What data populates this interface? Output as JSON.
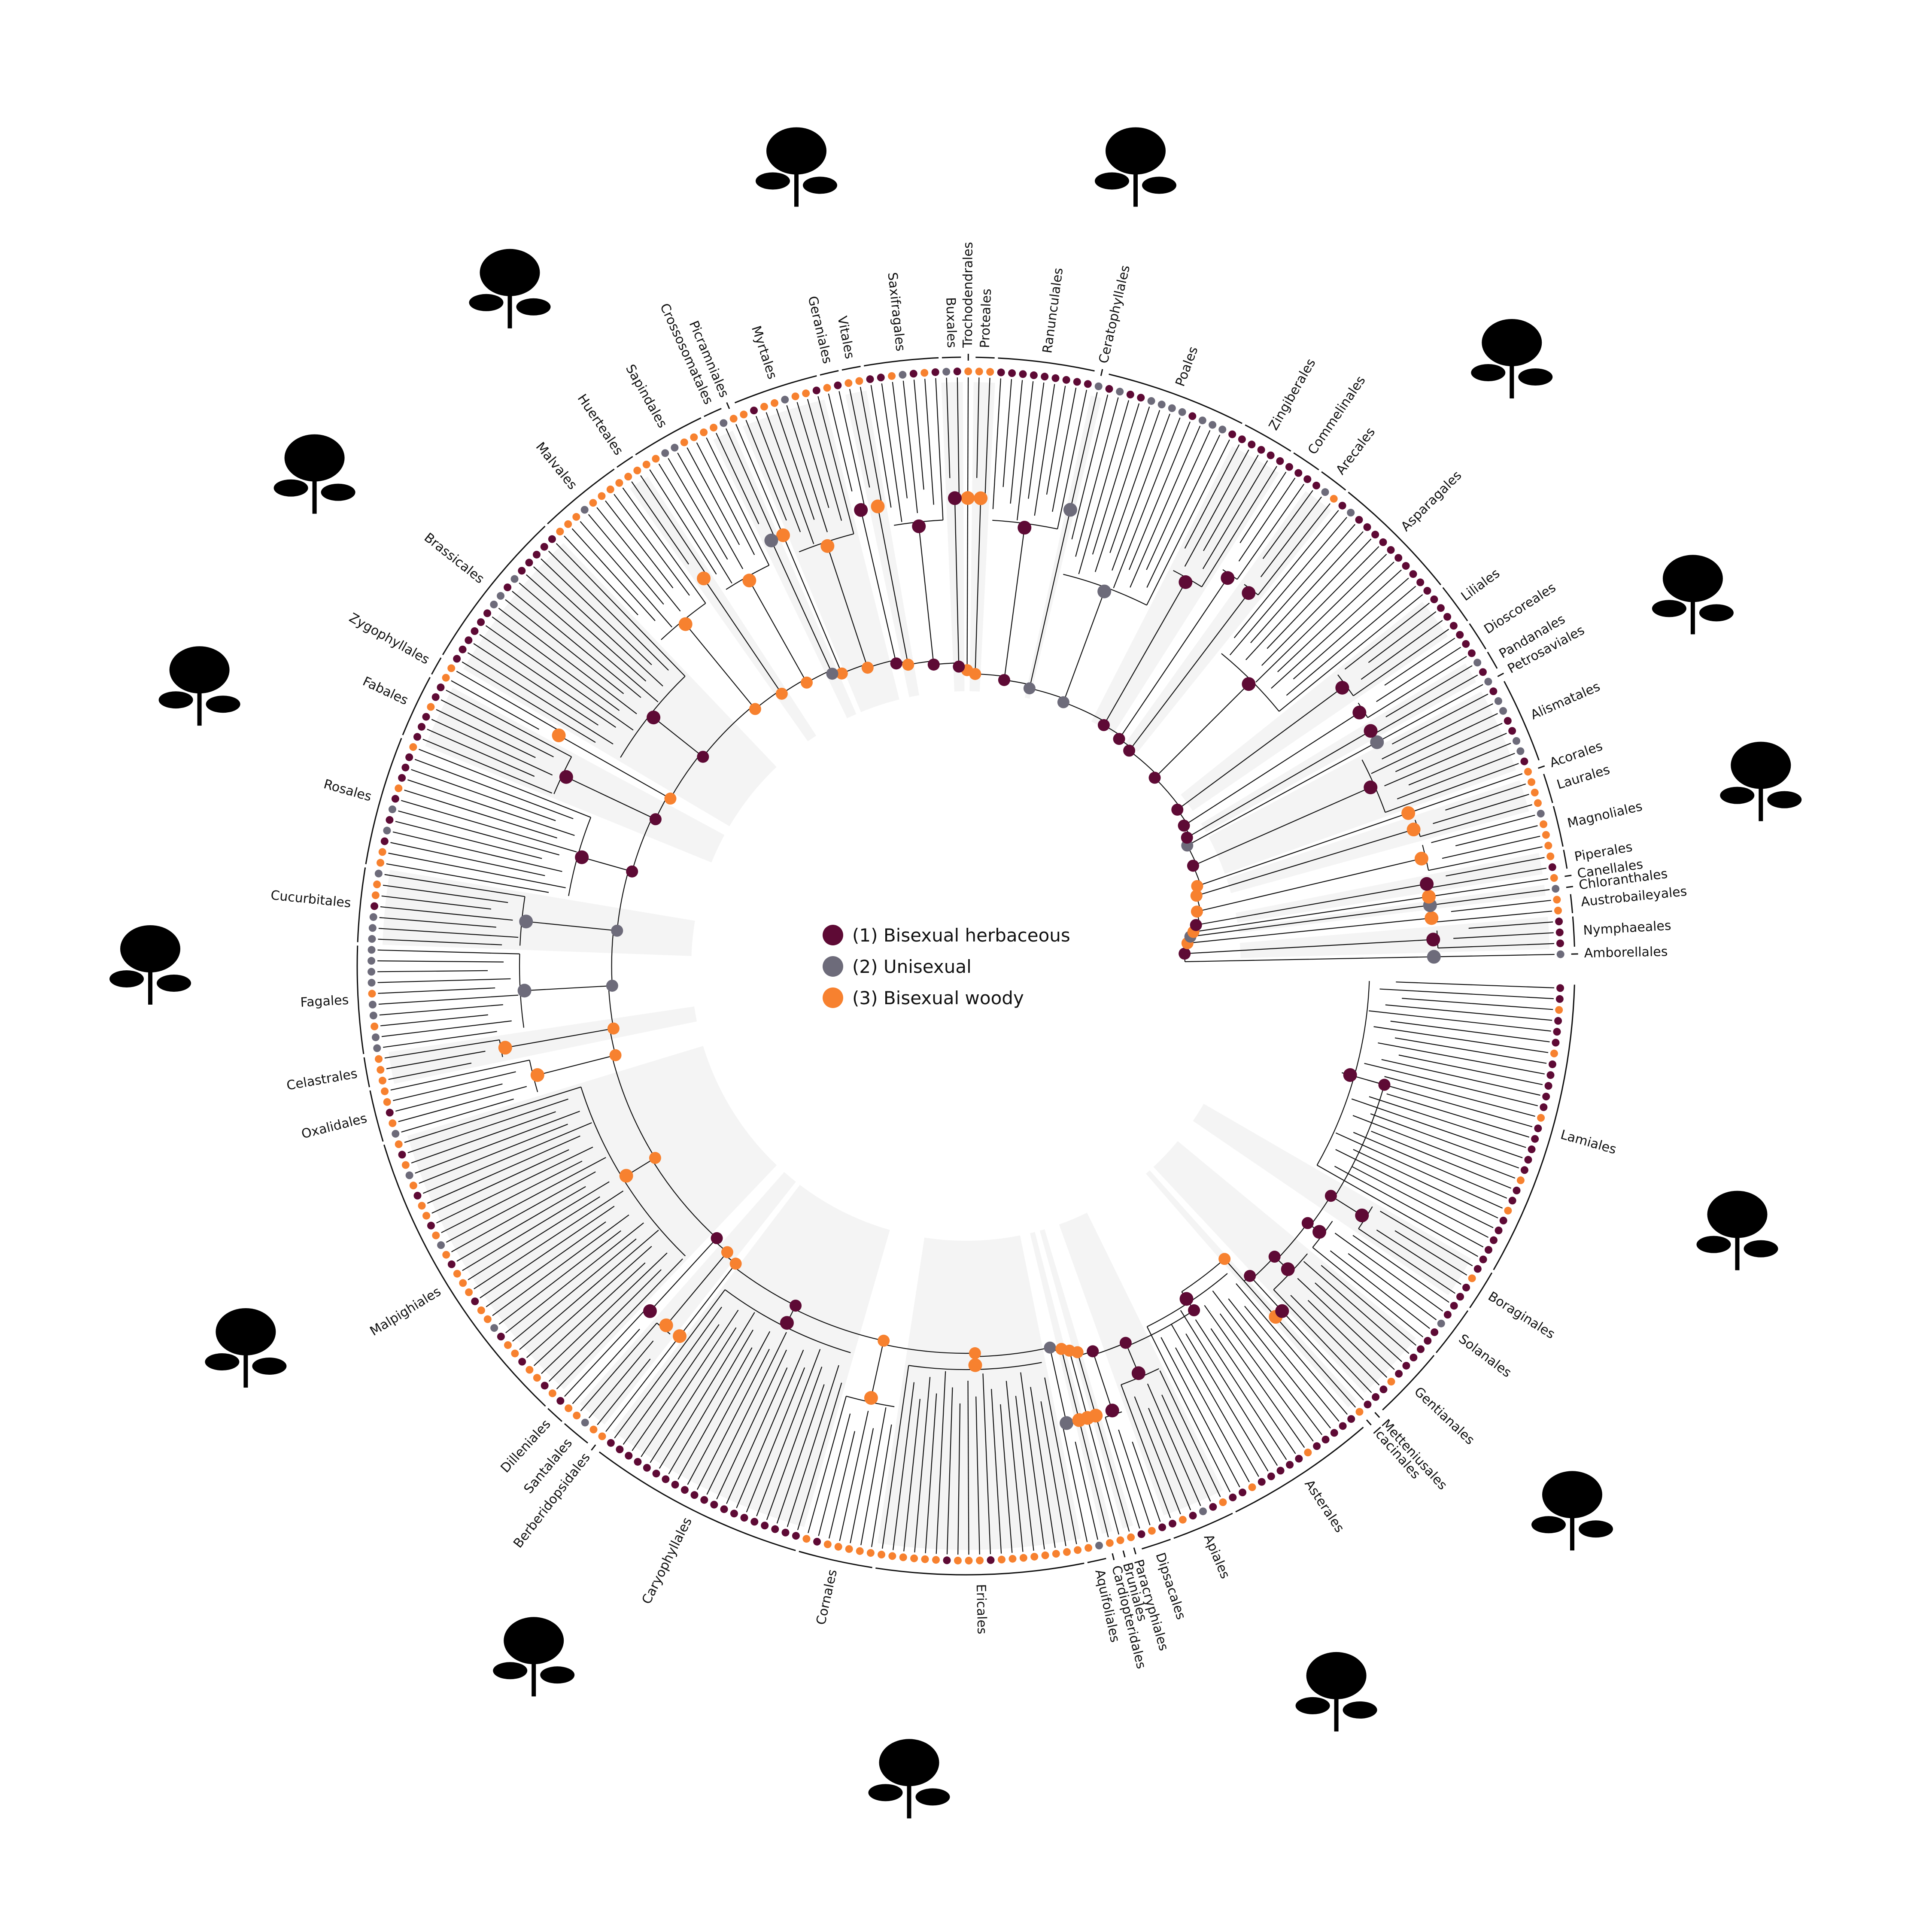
{
  "colors": {
    "state1": "#5e0a35",
    "state2": "#6d6b7a",
    "state3": "#f7812f",
    "branch": "#111111",
    "bracket": "#111111",
    "band": "#ebebeb",
    "silhouette": "#000000"
  },
  "legend": {
    "items": [
      {
        "label": "(1) Bisexual herbaceous",
        "color": "#5e0a35"
      },
      {
        "label": "(2) Unisexual",
        "color": "#6d6b7a"
      },
      {
        "label": "(3) Bisexual woody",
        "color": "#f7812f"
      }
    ]
  },
  "orders": [
    {
      "name": "Amborellales",
      "angle": 0.6,
      "tips": [
        2
      ]
    },
    {
      "name": "Nymphaeales",
      "angle": 3.2,
      "tips": [
        1,
        1,
        1
      ]
    },
    {
      "name": "Austrobaileyales",
      "angle": 6.2,
      "tips": [
        3,
        3
      ]
    },
    {
      "name": "Chloranthales",
      "angle": 7.6,
      "tips": [
        2
      ]
    },
    {
      "name": "Canellales",
      "angle": 8.8,
      "tips": [
        3
      ]
    },
    {
      "name": "Piperales",
      "angle": 10.3,
      "tips": [
        1,
        3
      ]
    },
    {
      "name": "Magnoliales",
      "angle": 14.6,
      "tips": [
        3,
        3,
        3,
        2
      ]
    },
    {
      "name": "Laurales",
      "angle": 19.1,
      "tips": [
        3,
        3,
        3
      ]
    },
    {
      "name": "Acorales",
      "angle": 21.4,
      "tips": [
        3
      ]
    },
    {
      "name": "Alismatales",
      "angle": 26.0,
      "tips": [
        1,
        2,
        2,
        1,
        1,
        2,
        2,
        1
      ]
    },
    {
      "name": "Petrosaviales",
      "angle": 32.2,
      "tips": [
        2
      ]
    },
    {
      "name": "Pandanales",
      "angle": 33.8,
      "tips": [
        1,
        2
      ]
    },
    {
      "name": "Dioscoreales",
      "angle": 36.0,
      "tips": [
        1,
        1,
        1
      ]
    },
    {
      "name": "Liliales",
      "angle": 39.4,
      "tips": [
        1,
        1,
        1,
        1
      ]
    },
    {
      "name": "Asparagales",
      "angle": 48.0,
      "tips": [
        1,
        1,
        1,
        1,
        1,
        1,
        1,
        1,
        1,
        1,
        2,
        1
      ]
    },
    {
      "name": "Arecales",
      "angle": 55.6,
      "tips": [
        3,
        2,
        1
      ]
    },
    {
      "name": "Commelinales",
      "angle": 58.4,
      "tips": [
        1,
        1,
        1
      ]
    },
    {
      "name": "Zingiberales",
      "angle": 62.6,
      "tips": [
        1,
        1,
        1,
        1,
        1
      ]
    },
    {
      "name": "Poales",
      "angle": 71.5,
      "tips": [
        1,
        2,
        2,
        2,
        1,
        2,
        2,
        2,
        2,
        1,
        1,
        2,
        1
      ]
    },
    {
      "name": "Ceratophyllales",
      "angle": 78.0,
      "tips": [
        2
      ]
    },
    {
      "name": "Ranunculales",
      "angle": 83.0,
      "tips": [
        1,
        1,
        1,
        1,
        1,
        1,
        1,
        1,
        1
      ]
    },
    {
      "name": "Proteales",
      "angle": 88.6,
      "tips": [
        3,
        3
      ]
    },
    {
      "name": "Trochodendrales",
      "angle": 91.3,
      "tips": [
        3
      ]
    },
    {
      "name": "Buxales",
      "angle": 92.6,
      "tips": [
        1,
        2
      ]
    },
    {
      "name": "Saxifragales",
      "angle": 97.4,
      "tips": [
        1,
        3,
        1,
        2,
        3,
        1,
        1
      ]
    },
    {
      "name": "Vitales",
      "angle": 102.0,
      "tips": [
        3,
        3
      ]
    },
    {
      "name": "Geraniales",
      "angle": 104.0,
      "tips": [
        1,
        3
      ]
    },
    {
      "name": "Myrtales",
      "angle": 109.0,
      "tips": [
        1,
        3,
        3,
        2,
        3,
        3,
        1,
        3
      ]
    },
    {
      "name": "Picramniales",
      "angle": 114.3,
      "tips": [
        3
      ]
    },
    {
      "name": "Crossosomatales",
      "angle": 115.8,
      "tips": [
        2,
        3
      ]
    },
    {
      "name": "Sapindales",
      "angle": 120.8,
      "tips": [
        3,
        3,
        3,
        2,
        2,
        3,
        3
      ]
    },
    {
      "name": "Huerteales",
      "angle": 125.8,
      "tips": [
        3,
        3
      ]
    },
    {
      "name": "Malvales",
      "angle": 131.0,
      "tips": [
        3,
        3,
        3,
        3,
        2,
        3,
        3,
        3
      ]
    },
    {
      "name": "Brassicales",
      "angle": 141.5,
      "tips": [
        1,
        1,
        1,
        1,
        1,
        2,
        1,
        2,
        2,
        1,
        1,
        1,
        1,
        1,
        1
      ]
    },
    {
      "name": "Zygophyllales",
      "angle": 150.0,
      "tips": [
        3,
        3
      ]
    },
    {
      "name": "Fabales",
      "angle": 153.5,
      "tips": [
        1,
        1,
        3,
        1,
        1,
        1
      ]
    },
    {
      "name": "Rosales",
      "angle": 162.0,
      "tips": [
        3,
        1,
        1,
        1,
        3,
        1,
        2,
        1,
        2,
        1,
        3,
        3
      ]
    },
    {
      "name": "Cucurbitales",
      "angle": 170.5,
      "tips": [
        2,
        3,
        3,
        1,
        2,
        2,
        2
      ]
    },
    {
      "name": "Fagales",
      "angle": 178.0,
      "tips": [
        2,
        2,
        2,
        2,
        3,
        2,
        2,
        3,
        2,
        2
      ]
    },
    {
      "name": "Celastrales",
      "angle": 184.5,
      "tips": [
        3,
        3,
        3
      ]
    },
    {
      "name": "Oxalidales",
      "angle": 187.8,
      "tips": [
        3,
        3,
        1,
        3,
        2
      ]
    },
    {
      "name": "Malpighiales",
      "angle": 203.0,
      "tips": [
        3,
        1,
        3,
        2,
        3,
        1,
        3,
        3,
        1,
        3,
        2,
        3,
        1,
        3,
        3,
        3,
        1,
        3,
        3,
        2,
        1,
        3,
        3,
        1,
        3,
        3,
        1,
        3
      ]
    },
    {
      "name": "Dilleniales",
      "angle": 218.0,
      "tips": [
        1,
        3
      ]
    },
    {
      "name": "Santalales",
      "angle": 221.0,
      "tips": [
        3,
        2,
        3
      ]
    },
    {
      "name": "Berberidopsidales",
      "angle": 224.0,
      "tips": [
        3
      ]
    },
    {
      "name": "Caryophyllales",
      "angle": 235.5,
      "tips": [
        1,
        1,
        1,
        1,
        1,
        1,
        1,
        1,
        1,
        1,
        1,
        1,
        1,
        1,
        1,
        1,
        1,
        1,
        1,
        1
      ]
    },
    {
      "name": "Cornales",
      "angle": 250.0,
      "tips": [
        3,
        1,
        3,
        3,
        3,
        3,
        3
      ]
    },
    {
      "name": "Ericales",
      "angle": 263.0,
      "tips": [
        3,
        3,
        3,
        3,
        3,
        3,
        1,
        3,
        3,
        3,
        1,
        3,
        3,
        3,
        3,
        3,
        3,
        3,
        3
      ]
    },
    {
      "name": "Aquifoliales",
      "angle": 273.0,
      "tips": [
        3,
        2
      ]
    },
    {
      "name": "Cardiopteridales",
      "angle": 274.8,
      "tips": [
        3
      ]
    },
    {
      "name": "Bruniales",
      "angle": 276.3,
      "tips": [
        3
      ]
    },
    {
      "name": "Paracryphiales",
      "angle": 277.6,
      "tips": [
        3
      ]
    },
    {
      "name": "Dipsacales",
      "angle": 279.5,
      "tips": [
        1,
        3,
        1
      ]
    },
    {
      "name": "Apiales",
      "angle": 285.0,
      "tips": [
        1,
        3,
        1,
        2,
        1,
        3
      ]
    },
    {
      "name": "Asterales",
      "angle": 296.0,
      "tips": [
        1,
        1,
        3,
        1,
        1,
        1,
        1,
        1,
        3,
        1,
        1,
        1,
        1,
        1
      ]
    },
    {
      "name": "Icacinales",
      "angle": 304.2,
      "tips": [
        3
      ]
    },
    {
      "name": "Metteniusales",
      "angle": 305.6,
      "tips": [
        1
      ]
    },
    {
      "name": "Gentianales",
      "angle": 310.5,
      "tips": [
        1,
        1,
        3,
        1,
        1,
        1,
        1
      ]
    },
    {
      "name": "Solanales",
      "angle": 317.5,
      "tips": [
        1,
        1,
        2,
        1,
        1
      ]
    },
    {
      "name": "Boraginales",
      "angle": 323.0,
      "tips": [
        1,
        1,
        3,
        1
      ]
    },
    {
      "name": "Lamiales",
      "angle": 341.5,
      "tips": [
        1,
        1,
        1,
        1,
        1,
        3,
        1,
        1,
        3,
        1,
        1,
        1,
        1,
        1,
        3,
        1,
        1,
        1,
        1,
        1,
        3,
        1,
        1,
        1,
        3,
        1,
        1
      ]
    }
  ],
  "silhouettes": [
    {
      "icon": "cactus-icon",
      "angle": 102
    },
    {
      "icon": "lily-icon",
      "angle": 78
    },
    {
      "icon": "orchid-icon",
      "angle": 48
    },
    {
      "icon": "aroid-icon",
      "angle": 27
    },
    {
      "icon": "magnolia-flower-icon",
      "angle": 13
    },
    {
      "icon": "lavender-sprig-icon",
      "angle": 341
    },
    {
      "icon": "flower-cluster-icon",
      "angle": 318
    },
    {
      "icon": "daisy-icon",
      "angle": 297
    },
    {
      "icon": "primrose-icon",
      "angle": 266
    },
    {
      "icon": "foxglove-icon",
      "angle": 238
    },
    {
      "icon": "vine-icon",
      "angle": 208
    },
    {
      "icon": "oak-tree-icon",
      "angle": 180
    },
    {
      "icon": "fig-leaves-icon",
      "angle": 160
    },
    {
      "icon": "rosette-herb-icon",
      "angle": 143
    },
    {
      "icon": "maple-leaf-icon",
      "angle": 124
    }
  ]
}
